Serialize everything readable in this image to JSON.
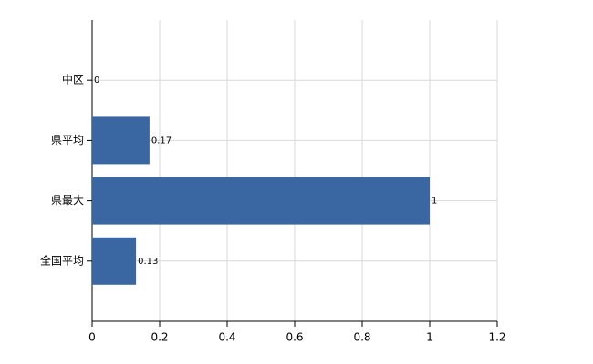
{
  "chart_data": {
    "type": "bar",
    "orientation": "horizontal",
    "categories": [
      "中区",
      "県平均",
      "県最大",
      "全国平均"
    ],
    "values": [
      0,
      0.17,
      1,
      0.13
    ],
    "color": "#3a67a1",
    "xlim": [
      0,
      1.2
    ],
    "xticks": [
      0,
      0.2,
      0.4,
      0.6,
      0.8,
      1,
      1.2
    ],
    "grid": true
  }
}
